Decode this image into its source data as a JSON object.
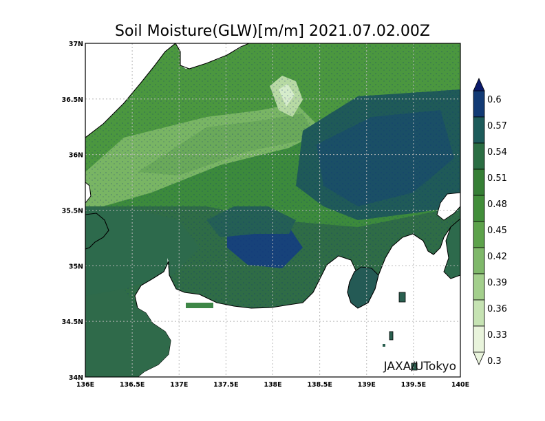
{
  "title": "Soil Moisture(GLW)[m/m] 2021.07.02.00Z",
  "credit": "JAXA/UTokyo",
  "map": {
    "lon_range": [
      136,
      140
    ],
    "lat_range": [
      34,
      37
    ],
    "x_ticks": [
      "136E",
      "136.5E",
      "137E",
      "137.5E",
      "138E",
      "138.5E",
      "139E",
      "139.5E",
      "140E"
    ],
    "y_ticks": [
      "34N",
      "34.5N",
      "35N",
      "35.5N",
      "36N",
      "36.5N",
      "37N"
    ],
    "grid": true
  },
  "colorbar": {
    "labels": [
      "0.6",
      "0.57",
      "0.54",
      "0.51",
      "0.48",
      "0.45",
      "0.42",
      "0.39",
      "0.36",
      "0.33",
      "0.3"
    ],
    "colors": [
      "#0a1a6b",
      "#123a74",
      "#1d5b5a",
      "#2b6e43",
      "#367f35",
      "#428e3a",
      "#5da24b",
      "#7fb86a",
      "#a3cf8c",
      "#c6e3b3",
      "#e9f4dc"
    ]
  }
}
